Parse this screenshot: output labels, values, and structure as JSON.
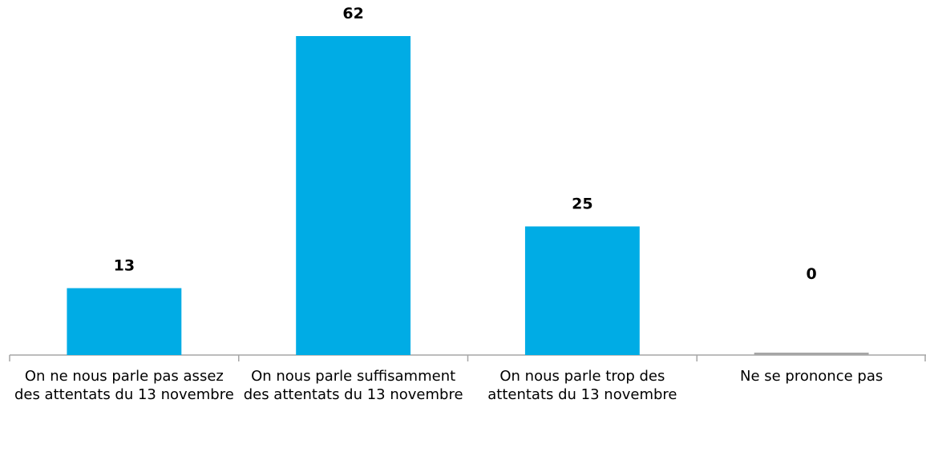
{
  "chart_data": {
    "type": "bar",
    "categories": [
      "On ne nous parle pas assez des attentats du 13 novembre",
      "On nous parle suffisamment des attentats du 13 novembre",
      "On nous parle trop des attentats du 13 novembre",
      "Ne se prononce pas"
    ],
    "values": [
      13,
      62,
      25,
      0
    ],
    "colors": [
      "#00ace5",
      "#00ace5",
      "#00ace5",
      "#a6a6a6"
    ]
  }
}
